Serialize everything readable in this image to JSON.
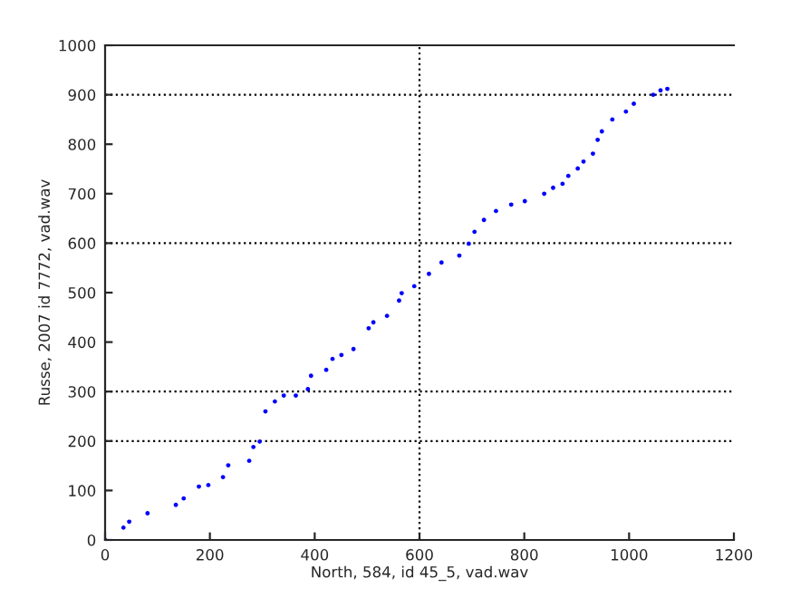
{
  "chart_data": {
    "type": "scatter",
    "xlabel": "North, 584, id 45_5, vad.wav",
    "ylabel": "Russe, 2007 id 7772, vad.wav",
    "x": [
      0,
      35,
      46,
      81,
      135,
      150,
      179,
      197,
      225,
      235,
      275,
      283,
      295,
      306,
      324,
      341,
      364,
      387,
      393,
      422,
      434,
      451,
      474,
      503,
      512,
      538,
      561,
      566,
      590,
      618,
      642,
      676,
      694,
      705,
      723,
      746,
      775,
      801,
      838,
      855,
      873,
      884,
      902,
      913,
      931,
      940,
      948,
      968,
      994,
      1009,
      1046,
      1060,
      1073
    ],
    "series": [
      {
        "color": "#0000ff",
        "values": [
          0,
          25,
          37,
          54,
          71,
          84,
          108,
          111,
          127,
          151,
          160,
          188,
          199,
          260,
          280,
          292,
          292,
          305,
          332,
          344,
          366,
          374,
          386,
          428,
          440,
          453,
          484,
          499,
          513,
          538,
          561,
          575,
          599,
          623,
          647,
          665,
          678,
          685,
          700,
          712,
          720,
          736,
          751,
          765,
          781,
          809,
          826,
          850,
          866,
          882,
          900,
          909,
          912
        ]
      }
    ],
    "marker": "circle",
    "xlim": [
      0,
      1200
    ],
    "xticks": [
      0,
      200,
      400,
      600,
      800,
      1000,
      1200
    ],
    "ylim": [
      0,
      1000
    ],
    "yticks": [
      0,
      100,
      200,
      300,
      400,
      500,
      600,
      700,
      800,
      900,
      1000
    ],
    "ref_lines": [
      {
        "axis": "y",
        "value": 200,
        "color": "#000000",
        "line_style": "dotted"
      },
      {
        "axis": "y",
        "value": 300,
        "color": "#000000",
        "line_style": "dotted"
      },
      {
        "axis": "y",
        "value": 600,
        "color": "#000000",
        "line_style": "dotted"
      },
      {
        "axis": "y",
        "value": 900,
        "color": "#000000",
        "line_style": "dotted"
      },
      {
        "axis": "x",
        "value": 600,
        "color": "#000000",
        "line_style": "dotted"
      }
    ],
    "grid": false
  }
}
